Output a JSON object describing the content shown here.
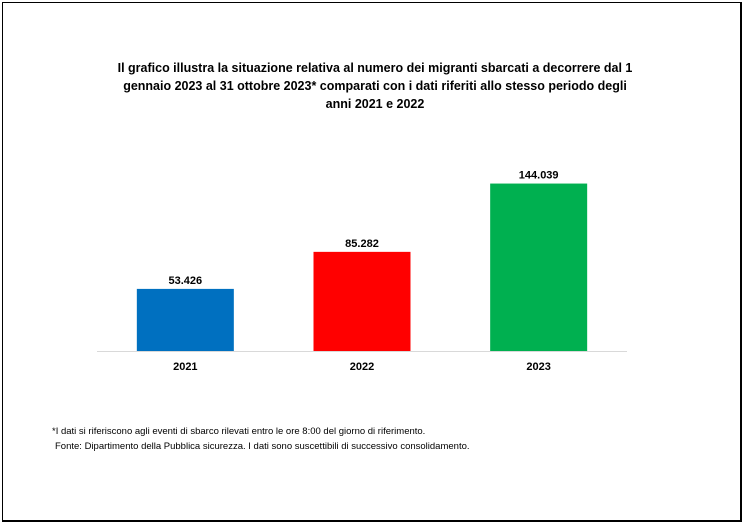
{
  "chart_data": {
    "type": "bar",
    "title": "Il grafico illustra la situazione relativa al numero dei migranti sbarcati a decorrere dal 1 gennaio 2023 al 31 ottobre 2023* comparati con i dati riferiti allo stesso periodo degli anni 2021 e 2022",
    "categories": [
      "2021",
      "2022",
      "2023"
    ],
    "values": [
      53426,
      85282,
      144039
    ],
    "value_labels": [
      "53.426",
      "85.282",
      "144.039"
    ],
    "colors": [
      "#0070C0",
      "#FF0000",
      "#00B050"
    ],
    "xlabel": "",
    "ylabel": "",
    "ylim": [
      0,
      160000
    ],
    "grid": false,
    "legend": "none"
  },
  "footnote": {
    "line1": "*I dati si riferiscono agli eventi di sbarco rilevati entro le ore 8:00 del giorno di riferimento.",
    "line2": "Fonte: Dipartimento della Pubblica sicurezza. I dati sono suscettibili di successivo consolidamento."
  }
}
